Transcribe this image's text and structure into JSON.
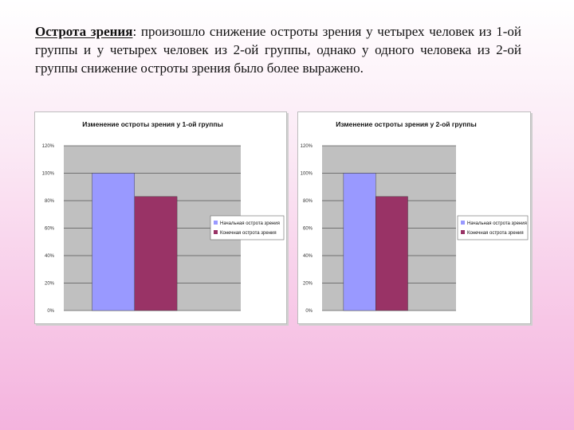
{
  "text": {
    "lead_bold": "Острота зрения",
    "body": ": произошло снижение остроты зрения у четырех человек из 1-ой группы и у четырех человек из 2-ой группы, однако у одного человека из 2-ой группы снижение остроты зрения было более выражено."
  },
  "colors": {
    "plot_bg": "#c0c0c0",
    "series1": "#9999ff",
    "series2": "#993366"
  },
  "chart_data": [
    {
      "type": "bar",
      "title": "Изменение остроты зрения у 1-ой группы",
      "yticks": [
        "0%",
        "20%",
        "40%",
        "60%",
        "80%",
        "100%",
        "120%"
      ],
      "ylim": [
        0,
        120
      ],
      "series": [
        {
          "name": "Начальная острота зрения",
          "values": [
            100
          ]
        },
        {
          "name": "Конечная острота зрения",
          "values": [
            83
          ]
        }
      ],
      "legend": "right",
      "grid": true
    },
    {
      "type": "bar",
      "title": "Изменение остроты зрения у 2-ой группы",
      "yticks": [
        "0%",
        "20%",
        "40%",
        "60%",
        "80%",
        "100%",
        "120%"
      ],
      "ylim": [
        0,
        120
      ],
      "series": [
        {
          "name": "Начальная острота зрения",
          "values": [
            100
          ]
        },
        {
          "name": "Конечная острота зрения",
          "values": [
            83
          ]
        }
      ],
      "legend": "right",
      "grid": true
    }
  ]
}
